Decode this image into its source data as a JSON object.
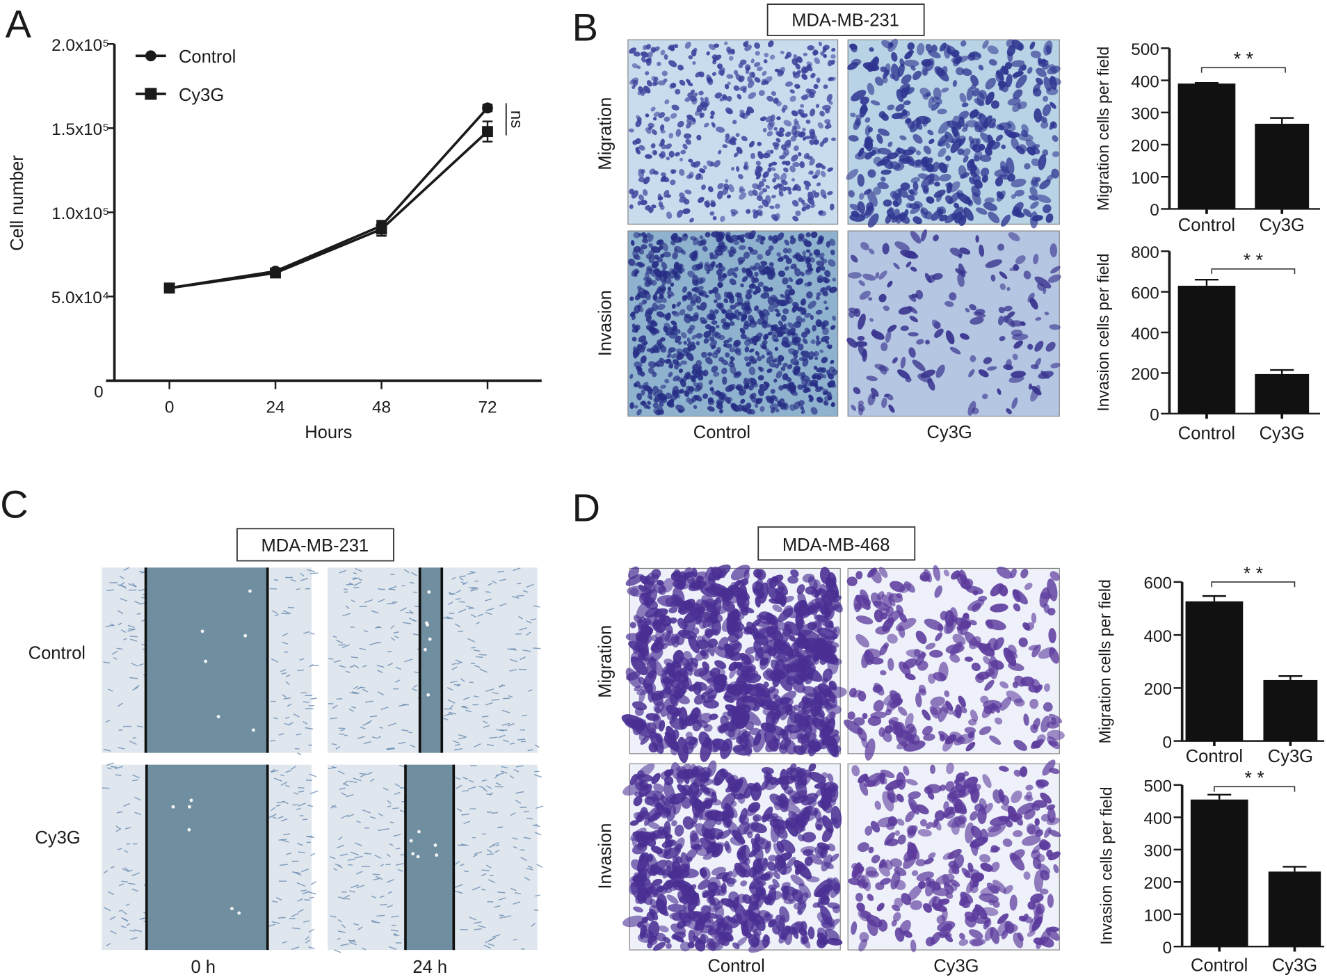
{
  "panels": {
    "A": {
      "letter": "A"
    },
    "B": {
      "letter": "B",
      "cell_line": "MDA-MB-231",
      "rows": [
        "Migration",
        "Invasion"
      ],
      "cols": [
        "Control",
        "Cy3G"
      ]
    },
    "C": {
      "letter": "C",
      "cell_line": "MDA-MB-231",
      "rows": [
        "Control",
        "Cy3G"
      ],
      "cols": [
        "0 h",
        "24 h"
      ]
    },
    "D": {
      "letter": "D",
      "cell_line": "MDA-MB-468",
      "rows": [
        "Migration",
        "Invasion"
      ],
      "cols": [
        "Control",
        "Cy3G"
      ]
    }
  },
  "colors": {
    "ink": "#1a1a1a",
    "stain_231": "#3b3f9a",
    "stain_468": "#5a3d9e",
    "bg_231": "#b9d3e6",
    "bg_468": "#eef1fa",
    "wound": "#6f8ea0"
  },
  "chart_data": [
    {
      "type": "line",
      "panel": "A",
      "title": "",
      "xlabel": "Hours",
      "ylabel": "Cell number",
      "x": [
        0,
        24,
        48,
        72
      ],
      "xticks": [
        "0",
        "24",
        "48",
        "72"
      ],
      "ylim": [
        0,
        200000
      ],
      "yticks": [
        0,
        50000,
        100000,
        150000,
        200000
      ],
      "ytick_labels": [
        "0",
        "5.0x10⁴",
        "1.0x10⁵",
        "1.5x10⁵",
        "2.0x10⁵"
      ],
      "series": [
        {
          "name": "Control",
          "marker": "circle",
          "values": [
            55000,
            65000,
            92000,
            162000
          ],
          "errors": [
            1000,
            1500,
            3000,
            2000
          ]
        },
        {
          "name": "Cy3G",
          "marker": "square",
          "values": [
            55000,
            64000,
            90000,
            148000
          ],
          "errors": [
            1000,
            1500,
            4000,
            6000
          ]
        }
      ],
      "legend": "top-left",
      "annotation": "ns"
    },
    {
      "type": "bar",
      "panel": "B",
      "title": "",
      "ylabel": "Migration cells per field",
      "categories": [
        "Control",
        "Cy3G"
      ],
      "values": [
        390,
        265
      ],
      "errors": [
        2,
        18
      ],
      "ylim": [
        0,
        500
      ],
      "yticks": [
        "0",
        "100",
        "200",
        "300",
        "400",
        "500"
      ],
      "significance": "* *"
    },
    {
      "type": "bar",
      "panel": "B",
      "title": "",
      "ylabel": "Invasion cells per field",
      "categories": [
        "Control",
        "Cy3G"
      ],
      "values": [
        630,
        195
      ],
      "errors": [
        30,
        20
      ],
      "ylim": [
        0,
        800
      ],
      "yticks": [
        "0",
        "200",
        "400",
        "600",
        "800"
      ],
      "significance": "* *"
    },
    {
      "type": "bar",
      "panel": "D",
      "title": "",
      "ylabel": "Migration cells per field",
      "categories": [
        "Control",
        "Cy3G"
      ],
      "values": [
        527,
        230
      ],
      "errors": [
        20,
        15
      ],
      "ylim": [
        0,
        600
      ],
      "yticks": [
        "0",
        "200",
        "400",
        "600"
      ],
      "significance": "* *"
    },
    {
      "type": "bar",
      "panel": "D",
      "title": "",
      "ylabel": "Invasion cells per field",
      "categories": [
        "Control",
        "Cy3G"
      ],
      "values": [
        455,
        232
      ],
      "errors": [
        15,
        15
      ],
      "ylim": [
        0,
        500
      ],
      "yticks": [
        "0",
        "100",
        "200",
        "300",
        "400",
        "500"
      ],
      "significance": "* *"
    }
  ]
}
